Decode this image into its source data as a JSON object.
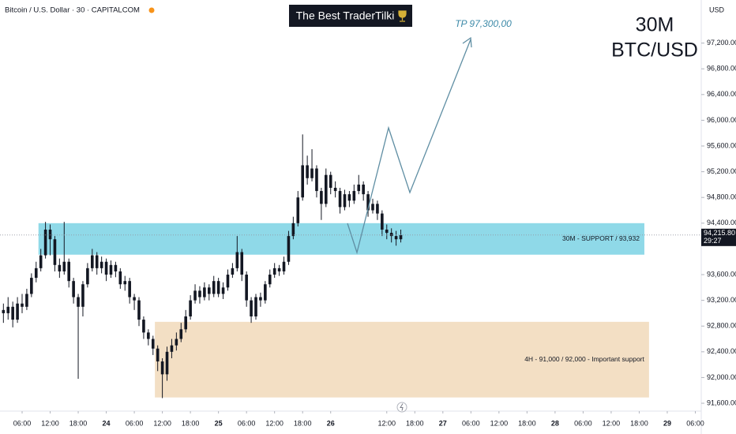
{
  "chart_data": {
    "type": "candlestick",
    "header": "Bitcoin / U.S. Dollar · 30 · CAPITALCOM",
    "title": "The Best TraderTilki",
    "big_label": [
      "30M",
      "BTC/USD"
    ],
    "target_label": "TP 97,300,00",
    "currency": "USD",
    "candle_color": "#131722",
    "grid": false,
    "xlim": [
      1.27,
      151.27
    ],
    "ylim": [
      91490,
      97870
    ],
    "yticks": [
      {
        "value": 91600,
        "label": "91,600.00"
      },
      {
        "value": 92000,
        "label": "92,000.00"
      },
      {
        "value": 92400,
        "label": "92,400.00"
      },
      {
        "value": 92800,
        "label": "92,800.00"
      },
      {
        "value": 93200,
        "label": "93,200.00"
      },
      {
        "value": 93600,
        "label": "93,600.00"
      },
      {
        "value": 94400,
        "label": "94,400.00"
      },
      {
        "value": 94800,
        "label": "94,800.00"
      },
      {
        "value": 95200,
        "label": "95,200.00"
      },
      {
        "value": 95600,
        "label": "95,600.00"
      },
      {
        "value": 96000,
        "label": "96,000.00"
      },
      {
        "value": 96400,
        "label": "96,400.00"
      },
      {
        "value": 96800,
        "label": "96,800.00"
      },
      {
        "value": 97200,
        "label": "97,200.00"
      }
    ],
    "xticks": [
      {
        "value": 6,
        "label": "06:00"
      },
      {
        "value": 12,
        "label": "12:00"
      },
      {
        "value": 18,
        "label": "18:00"
      },
      {
        "value": 24,
        "label": "24"
      },
      {
        "value": 30,
        "label": "06:00"
      },
      {
        "value": 36,
        "label": "12:00"
      },
      {
        "value": 42,
        "label": "18:00"
      },
      {
        "value": 48,
        "label": "25"
      },
      {
        "value": 54,
        "label": "06:00"
      },
      {
        "value": 60,
        "label": "12:00"
      },
      {
        "value": 66,
        "label": "18:00"
      },
      {
        "value": 72,
        "label": "26"
      },
      {
        "value": 84,
        "label": "12:00"
      },
      {
        "value": 90,
        "label": "18:00"
      },
      {
        "value": 96,
        "label": "27"
      },
      {
        "value": 102,
        "label": "06:00"
      },
      {
        "value": 108,
        "label": "12:00"
      },
      {
        "value": 114,
        "label": "18:00"
      },
      {
        "value": 120,
        "label": "28"
      },
      {
        "value": 126,
        "label": "06:00"
      },
      {
        "value": 132,
        "label": "12:00"
      },
      {
        "value": 138,
        "label": "18:00"
      },
      {
        "value": 144,
        "label": "29"
      },
      {
        "value": 150,
        "label": "06:00"
      }
    ],
    "last_price": {
      "value": 94215.8,
      "label": "94,215.80"
    },
    "countdown": "29:27",
    "zones": [
      {
        "label": "30M - SUPPORT / 93,932",
        "range": [
          93910,
          94400
        ],
        "x": [
          9.5,
          139.1
        ],
        "color": "#8fd9e8"
      },
      {
        "label": "4H - 91,000 / 92,000 - Important support",
        "range": [
          91690,
          92866
        ],
        "x": [
          34.4,
          140.1
        ],
        "color": "#f3dfc4"
      }
    ],
    "candles": {
      "x": [
        2,
        3,
        4,
        5,
        6,
        7,
        8,
        9,
        10,
        11,
        12,
        13,
        14,
        15,
        16,
        17,
        18,
        19,
        20,
        21,
        22,
        23,
        24,
        25,
        26,
        27,
        28,
        29,
        30,
        31,
        32,
        33,
        34,
        35,
        36,
        37,
        38,
        39,
        40,
        41,
        42,
        43,
        44,
        45,
        46,
        47,
        48,
        49,
        50,
        51,
        52,
        53,
        54,
        55,
        56,
        57,
        58,
        59,
        60,
        61,
        62,
        63,
        64,
        65,
        66,
        67,
        68,
        69,
        70,
        71,
        72,
        73,
        74,
        75,
        76,
        77,
        78,
        79,
        80,
        81,
        82,
        83,
        84,
        85,
        86,
        87
      ],
      "open": [
        93050,
        93000,
        93100,
        92900,
        93150,
        93100,
        93300,
        93550,
        93700,
        93900,
        94300,
        94150,
        93750,
        93650,
        93800,
        93500,
        93250,
        93100,
        93450,
        93700,
        93900,
        93700,
        93800,
        93600,
        93750,
        93650,
        93450,
        93500,
        93250,
        93200,
        92900,
        92700,
        92600,
        92450,
        92250,
        92050,
        92400,
        92500,
        92600,
        92750,
        92950,
        93200,
        93350,
        93250,
        93400,
        93300,
        93500,
        93300,
        93400,
        93600,
        93700,
        93950,
        93600,
        93200,
        92950,
        93250,
        93200,
        93450,
        93600,
        93700,
        93650,
        93800,
        94200,
        94400,
        94800,
        95300,
        95100,
        95250,
        94900,
        94700,
        95150,
        94950,
        94900,
        94650,
        94850,
        94750,
        94900,
        95000,
        94850,
        94600,
        94700,
        94550,
        94300,
        94250,
        94200,
        94150
      ],
      "high": [
        93150,
        93250,
        93180,
        93250,
        93300,
        93380,
        93620,
        93800,
        94000,
        94420,
        94380,
        94200,
        93850,
        94420,
        93850,
        93550,
        93300,
        93500,
        93780,
        94000,
        93950,
        93880,
        93850,
        93820,
        93800,
        93700,
        93580,
        93550,
        93300,
        93250,
        92950,
        92750,
        92650,
        92500,
        92300,
        92480,
        92600,
        92700,
        92850,
        93050,
        93280,
        93450,
        93420,
        93480,
        93450,
        93580,
        93550,
        93480,
        93680,
        93780,
        94200,
        94000,
        93650,
        93250,
        93300,
        93320,
        93500,
        93680,
        93780,
        93750,
        93880,
        94280,
        94500,
        94900,
        95780,
        95450,
        95550,
        95300,
        94950,
        95250,
        95200,
        95050,
        94950,
        94920,
        94900,
        95000,
        95150,
        95050,
        94900,
        94780,
        94750,
        94600,
        94380,
        94320,
        94280,
        94300
      ],
      "low": [
        92850,
        92900,
        92780,
        92850,
        93000,
        93050,
        93250,
        93480,
        93650,
        93850,
        93900,
        93650,
        93550,
        93600,
        93400,
        93150,
        91980,
        92950,
        93400,
        93650,
        93600,
        93620,
        93500,
        93550,
        93560,
        93380,
        93350,
        93150,
        93050,
        92800,
        92600,
        92500,
        92350,
        92100,
        91680,
        91950,
        92300,
        92420,
        92550,
        92700,
        92900,
        93150,
        93150,
        93200,
        93200,
        93250,
        93250,
        93220,
        93350,
        93550,
        93650,
        93500,
        93100,
        92850,
        92900,
        93100,
        93150,
        93400,
        93550,
        93580,
        93600,
        93750,
        94150,
        94350,
        94750,
        95000,
        95050,
        94800,
        94450,
        94650,
        94850,
        94800,
        94550,
        94600,
        94650,
        94700,
        94850,
        94750,
        94500,
        94550,
        94450,
        94200,
        94150,
        94100,
        94050,
        94100
      ],
      "close": [
        93000,
        93100,
        92900,
        93150,
        93100,
        93300,
        93550,
        93700,
        93900,
        94300,
        94150,
        93750,
        93650,
        93800,
        93500,
        93250,
        93100,
        93450,
        93700,
        93900,
        93700,
        93800,
        93600,
        93750,
        93650,
        93450,
        93500,
        93250,
        93200,
        92900,
        92700,
        92600,
        92450,
        92250,
        92050,
        92400,
        92500,
        92600,
        92750,
        92950,
        93200,
        93350,
        93250,
        93400,
        93300,
        93500,
        93300,
        93400,
        93600,
        93700,
        93950,
        93600,
        93200,
        92950,
        93250,
        93200,
        93450,
        93600,
        93700,
        93650,
        93800,
        94200,
        94400,
        94800,
        95300,
        95100,
        95250,
        94900,
        94700,
        95150,
        94950,
        94900,
        94650,
        94850,
        94750,
        94900,
        95000,
        94850,
        94600,
        94700,
        94550,
        94300,
        94250,
        94200,
        94150,
        94215.8
      ]
    }
  }
}
